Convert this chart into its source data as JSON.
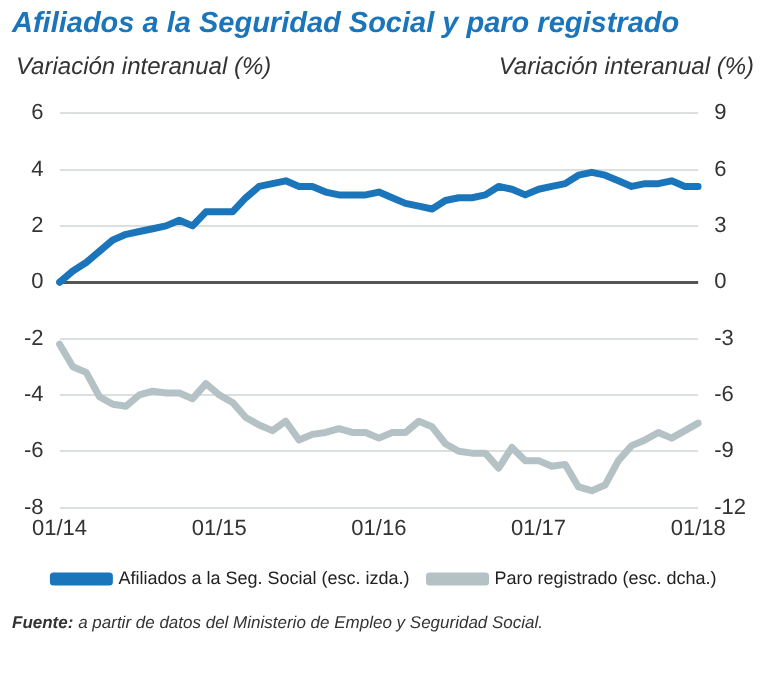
{
  "chart_data": {
    "type": "line",
    "title": "Afiliados a la Seguridad Social y paro registrado",
    "ylabel": "Variación interanual (%)",
    "y2label": "Variación interanual (%)",
    "categories": [
      "01/14",
      null,
      null,
      null,
      null,
      null,
      null,
      null,
      null,
      null,
      null,
      null,
      "01/15",
      null,
      null,
      null,
      null,
      null,
      null,
      null,
      null,
      null,
      null,
      null,
      "01/16",
      null,
      null,
      null,
      null,
      null,
      null,
      null,
      null,
      null,
      null,
      null,
      "01/17",
      null,
      null,
      null,
      null,
      null,
      null,
      null,
      null,
      null,
      null,
      null,
      "01/18"
    ],
    "series": [
      {
        "name": "Afiliados a la Seg. Social (esc. izda.)",
        "color": "#1a75bb",
        "values": [
          0,
          0.4,
          0.7,
          1.1,
          1.5,
          1.7,
          1.8,
          1.9,
          2.0,
          2.2,
          2.0,
          2.5,
          2.5,
          2.5,
          3.0,
          3.4,
          3.5,
          3.6,
          3.4,
          3.4,
          3.2,
          3.1,
          3.1,
          3.1,
          3.2,
          3.0,
          2.8,
          2.7,
          2.6,
          2.9,
          3.0,
          3.0,
          3.1,
          3.4,
          3.3,
          3.1,
          3.3,
          3.4,
          3.5,
          3.8,
          3.9,
          3.8,
          3.6,
          3.4,
          3.5,
          3.5,
          3.6,
          3.4,
          3.4
        ]
      },
      {
        "name": "Paro registrado (esc. dcha.)",
        "color": "#b4c1c5",
        "axis": "y2",
        "values": [
          -3.3,
          -4.5,
          -4.8,
          -6.1,
          -6.5,
          -6.6,
          -6.0,
          -5.8,
          -5.9,
          -5.9,
          -6.2,
          -5.4,
          -6.0,
          -6.4,
          -7.2,
          -7.6,
          -7.9,
          -7.4,
          -8.4,
          -8.1,
          -8.0,
          -7.8,
          -8.0,
          -8.0,
          -8.3,
          -8.0,
          -8.0,
          -7.4,
          -7.7,
          -8.6,
          -9.0,
          -9.1,
          -9.1,
          -9.9,
          -8.8,
          -9.5,
          -9.5,
          -9.8,
          -9.7,
          -10.9,
          -11.1,
          -10.8,
          -9.5,
          -8.7,
          -8.4,
          -8.0,
          -8.3,
          -7.9,
          -7.5
        ]
      }
    ],
    "ylim": [
      -8,
      6
    ],
    "yticks": [
      -8,
      -6,
      -4,
      -2,
      0,
      2,
      4,
      6
    ],
    "y2lim": [
      -12,
      9
    ],
    "y2ticks": [
      -12,
      -9,
      -6,
      -3,
      0,
      3,
      6,
      9
    ],
    "grid": "y",
    "legend": "bottom",
    "marker": "none",
    "line_style": "solid",
    "annotations": [
      "Fuente: a partir de datos del Ministerio de Empleo y Seguridad Social."
    ]
  }
}
